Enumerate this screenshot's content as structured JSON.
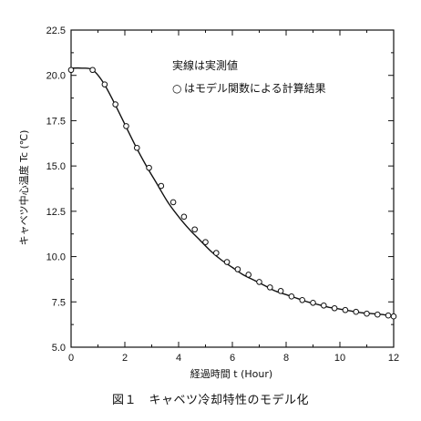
{
  "chart_data": {
    "type": "line",
    "title": "",
    "xlabel": "経過時間  t  (Hour)",
    "ylabel": "キャベツ中心温度  Tc (℃)",
    "xlim": [
      0,
      12
    ],
    "ylim": [
      5.0,
      22.5
    ],
    "x_ticks": [
      0,
      2,
      4,
      6,
      8,
      10,
      12
    ],
    "y_ticks": [
      "5.0",
      "7.5",
      "10.0",
      "12.5",
      "15.0",
      "17.5",
      "20.0",
      "22.5"
    ],
    "grid": false,
    "series": [
      {
        "name": "実線は実測値",
        "style": "solid-line",
        "x": [
          0,
          0.4,
          0.8,
          1.2,
          1.6,
          2.0,
          2.4,
          2.8,
          3.2,
          3.6,
          4.0,
          4.4,
          4.8,
          5.2,
          5.6,
          6.0,
          6.4,
          6.8,
          7.2,
          7.6,
          8.0,
          8.4,
          8.8,
          9.2,
          9.6,
          10.0,
          10.4,
          10.8,
          11.2,
          11.6,
          12.0
        ],
        "y": [
          20.4,
          20.4,
          20.3,
          19.6,
          18.5,
          17.3,
          16.1,
          15.0,
          14.0,
          13.0,
          12.2,
          11.5,
          10.9,
          10.3,
          9.8,
          9.4,
          9.0,
          8.7,
          8.4,
          8.1,
          7.9,
          7.7,
          7.5,
          7.35,
          7.2,
          7.1,
          7.0,
          6.9,
          6.85,
          6.8,
          6.7
        ]
      },
      {
        "name": "○はモデル関数による計算結果",
        "style": "open-circle-markers",
        "x": [
          0,
          0.8,
          1.25,
          1.65,
          2.05,
          2.45,
          2.9,
          3.35,
          3.8,
          4.2,
          4.6,
          5.0,
          5.4,
          5.8,
          6.2,
          6.6,
          7.0,
          7.4,
          7.8,
          8.2,
          8.6,
          9.0,
          9.4,
          9.8,
          10.2,
          10.6,
          11.0,
          11.4,
          11.8,
          12.0
        ],
        "y": [
          20.3,
          20.3,
          19.5,
          18.4,
          17.2,
          16.0,
          14.9,
          13.9,
          13.0,
          12.2,
          11.5,
          10.8,
          10.2,
          9.7,
          9.3,
          9.0,
          8.6,
          8.3,
          8.1,
          7.8,
          7.6,
          7.45,
          7.3,
          7.15,
          7.05,
          6.95,
          6.85,
          6.8,
          6.75,
          6.7
        ]
      }
    ]
  },
  "legend": {
    "line1": "実線は実測値",
    "line2_marker": "○",
    "line2": "はモデル関数による計算結果"
  },
  "caption": "図１　キャベツ冷却特性のモデル化"
}
